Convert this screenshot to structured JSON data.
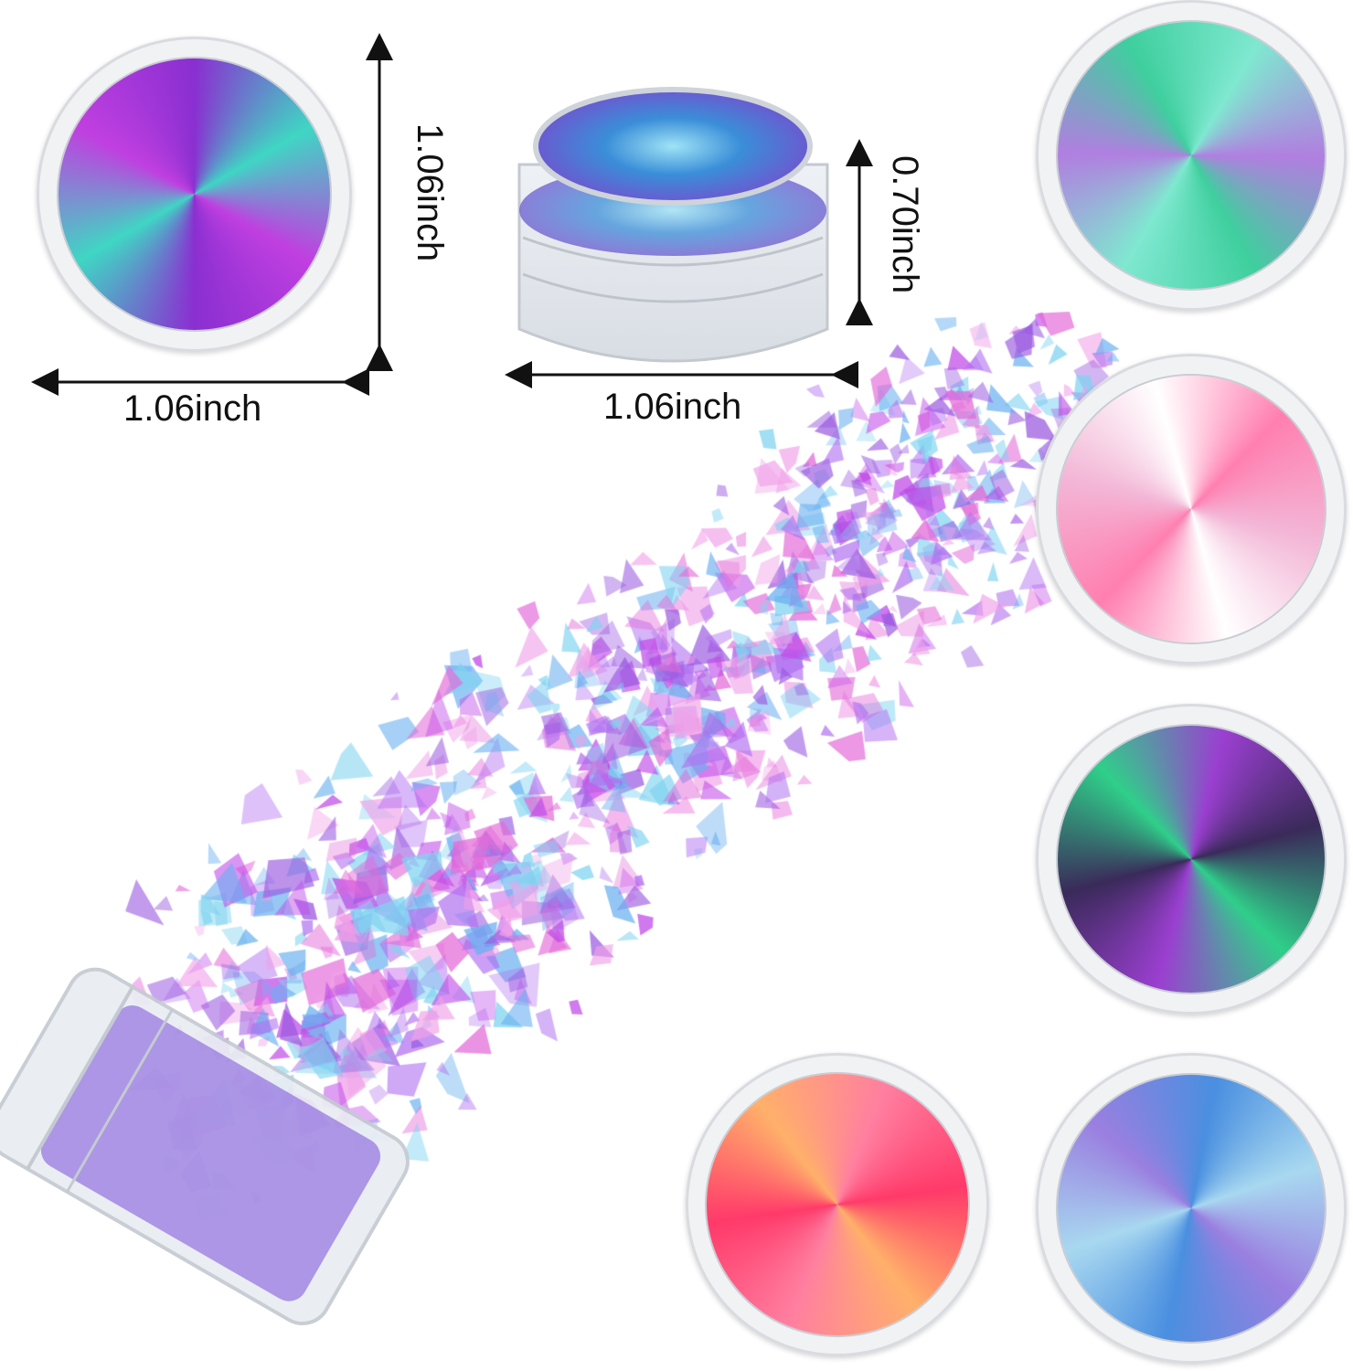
{
  "dimensions": {
    "top_jar_width": "1.06inch",
    "top_jar_height": "1.06inch",
    "side_jar_width": "1.06inch",
    "side_jar_height": "0.70inch"
  },
  "jars": [
    {
      "color": "purple-teal",
      "colors": [
        "#8a2fd1",
        "#3fd6c4",
        "#c03fe0"
      ]
    },
    {
      "color": "green-teal",
      "colors": [
        "#3fcf9e",
        "#7fe8d0",
        "#b07fe0"
      ]
    },
    {
      "color": "pink-white",
      "colors": [
        "#f3b6d6",
        "#ffffff",
        "#ff7fb0"
      ]
    },
    {
      "color": "dark-green-purple",
      "colors": [
        "#3a2a5a",
        "#2fcf8a",
        "#9a3fd0"
      ]
    },
    {
      "color": "red-orange",
      "colors": [
        "#ff3a6a",
        "#ffb06a",
        "#ff7fa0"
      ]
    },
    {
      "color": "blue",
      "colors": [
        "#4a8fe0",
        "#a8d8f0",
        "#9a7fe0"
      ]
    }
  ]
}
